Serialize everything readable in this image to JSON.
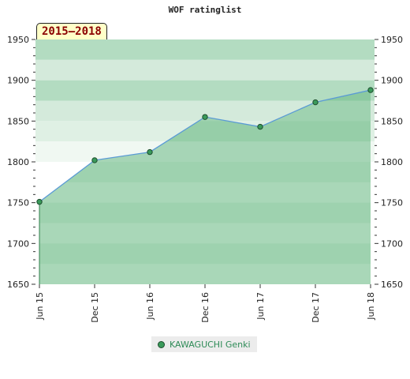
{
  "chart_data": {
    "type": "area",
    "title": "WOF ratinglist",
    "period_label": "2015–2018",
    "categories": [
      "Jun 15",
      "Dec 15",
      "Jun 16",
      "Dec 16",
      "Jun 17",
      "Dec 17",
      "Jun 18"
    ],
    "series": [
      {
        "name": "KAWAGUCHI Genki",
        "values": [
          1751,
          1802,
          1812,
          1855,
          1843,
          1873,
          1888
        ]
      }
    ],
    "ylim": [
      1650,
      1950
    ],
    "y_ticks": [
      "1650",
      "1700",
      "1750",
      "1800",
      "1850",
      "1900",
      "1950"
    ],
    "y_axis": "both sides",
    "legend_position": "bottom-center",
    "colors": {
      "area_fill": "#7dc394",
      "line": "#5b9bd5",
      "marker": "#3a9a5a",
      "band_dark": "#b3dcc1",
      "band_light": "#cfe8d7"
    }
  }
}
